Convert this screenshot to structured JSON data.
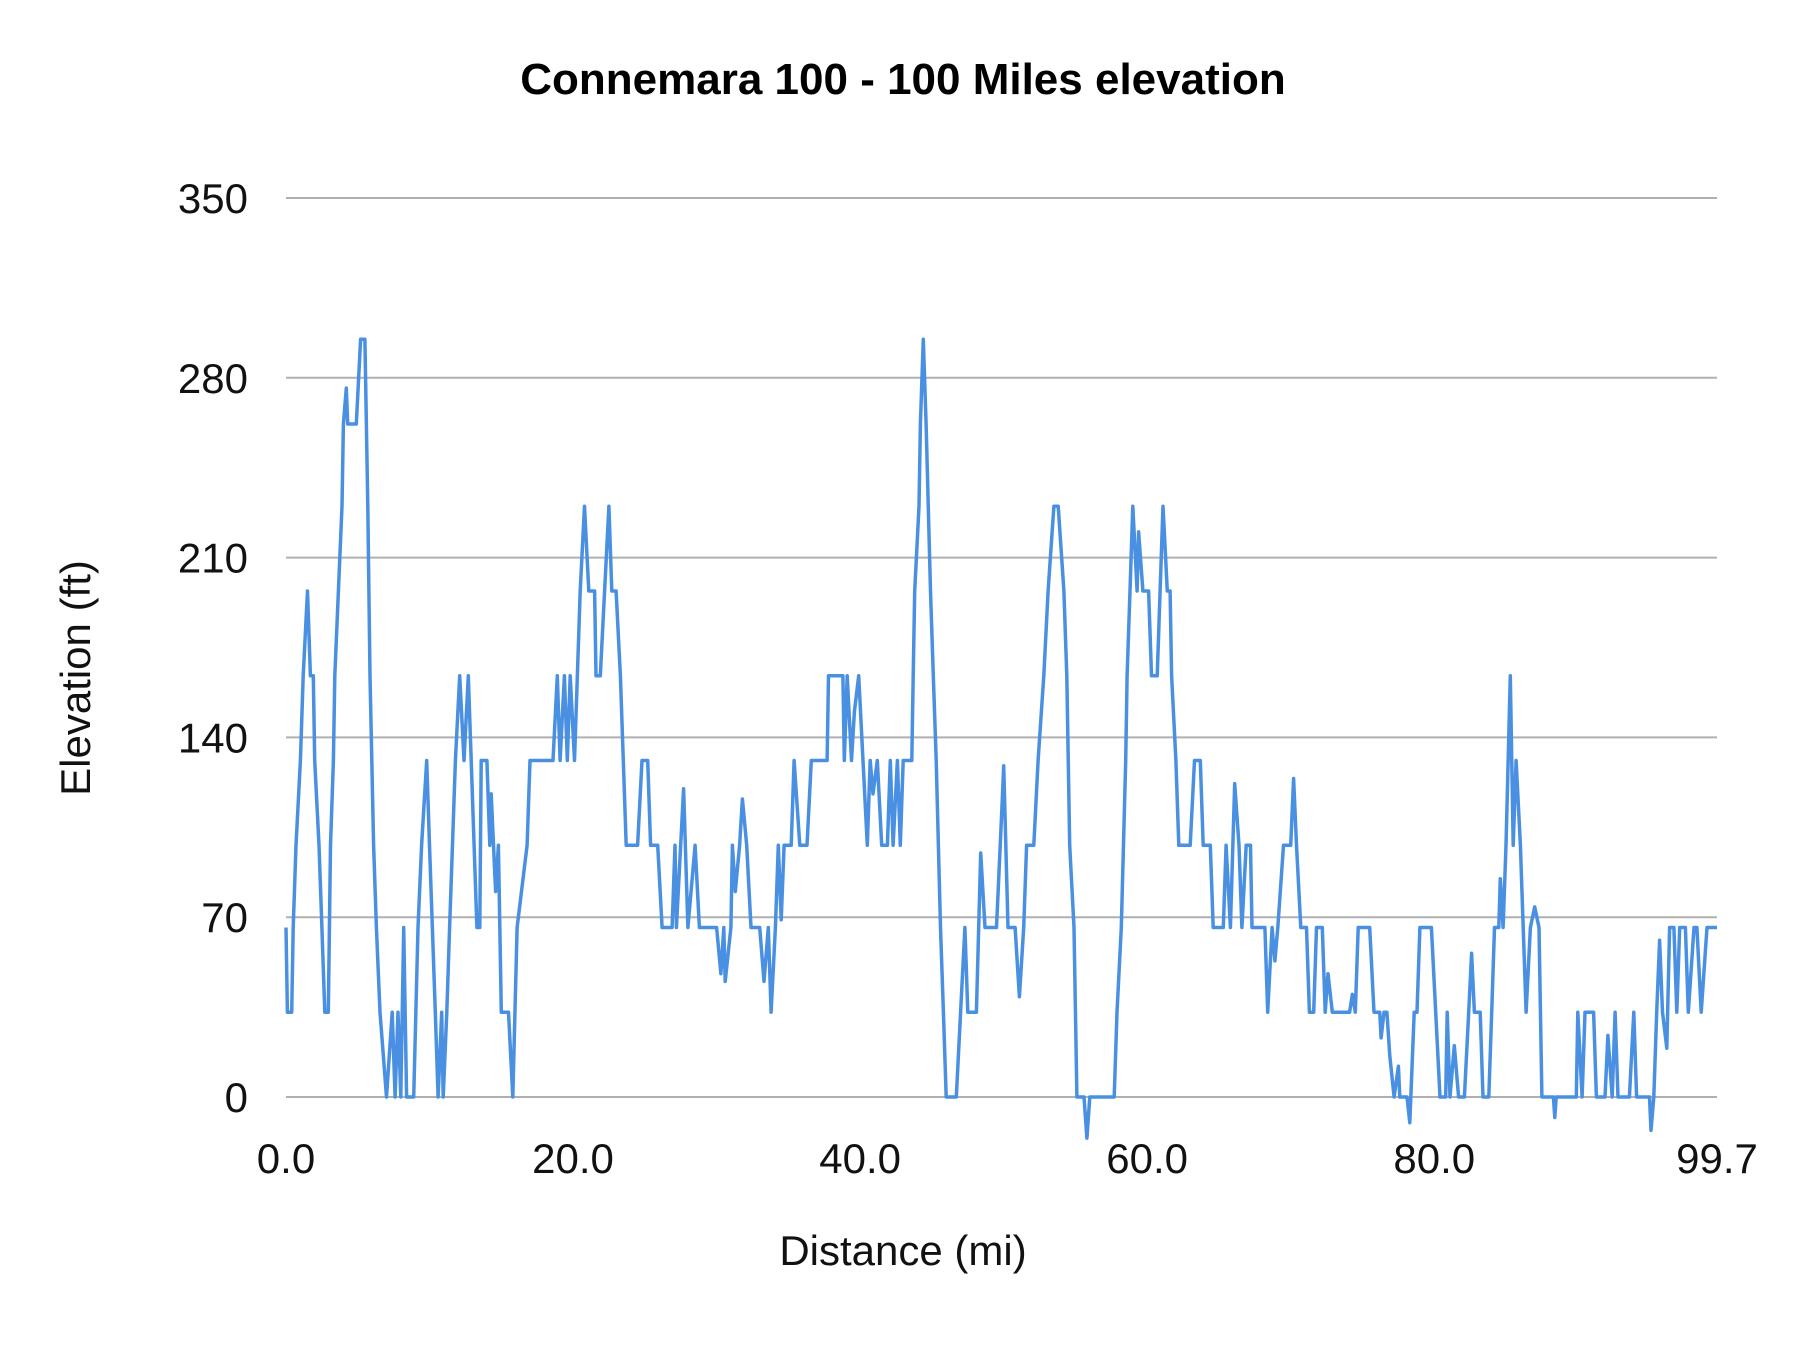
{
  "chart_data": {
    "type": "line",
    "title": "Connemara 100 - 100 Miles elevation",
    "xlabel": "Distance (mi)",
    "ylabel": "Elevation (ft)",
    "xlim": [
      0,
      99.7
    ],
    "ylim": [
      0,
      350
    ],
    "x_ticks": [
      "0.0",
      "20.0",
      "40.0",
      "60.0",
      "80.0",
      "99.7"
    ],
    "x_tick_values": [
      0,
      20,
      40,
      60,
      80,
      99.7
    ],
    "y_ticks": [
      "0",
      "70",
      "140",
      "210",
      "280",
      "350"
    ],
    "y_tick_values": [
      0,
      70,
      140,
      210,
      280,
      350
    ],
    "grid": "horizontal",
    "line_color": "#4a90e2",
    "series": [
      {
        "points": [
          [
            0,
            66
          ],
          [
            0.1,
            33
          ],
          [
            0.4,
            33
          ],
          [
            0.5,
            66
          ],
          [
            0.7,
            98
          ],
          [
            1.0,
            131
          ],
          [
            1.2,
            164
          ],
          [
            1.5,
            197
          ],
          [
            1.7,
            164
          ],
          [
            1.9,
            164
          ],
          [
            2.0,
            131
          ],
          [
            2.3,
            98
          ],
          [
            2.5,
            66
          ],
          [
            2.7,
            33
          ],
          [
            2.95,
            33
          ],
          [
            3.1,
            98
          ],
          [
            3.3,
            131
          ],
          [
            3.4,
            164
          ],
          [
            3.65,
            197
          ],
          [
            3.9,
            230
          ],
          [
            4.0,
            262
          ],
          [
            4.2,
            276
          ],
          [
            4.3,
            262
          ],
          [
            4.9,
            262
          ],
          [
            5.2,
            295
          ],
          [
            5.5,
            295
          ],
          [
            5.7,
            230
          ],
          [
            5.85,
            164
          ],
          [
            6.1,
            98
          ],
          [
            6.3,
            66
          ],
          [
            6.55,
            33
          ],
          [
            7.0,
            0
          ],
          [
            7.4,
            33
          ],
          [
            7.6,
            0
          ],
          [
            7.8,
            33
          ],
          [
            8.0,
            0
          ],
          [
            8.2,
            66
          ],
          [
            8.4,
            0
          ],
          [
            8.9,
            0
          ],
          [
            9.2,
            66
          ],
          [
            9.45,
            98
          ],
          [
            9.8,
            131
          ],
          [
            10.0,
            98
          ],
          [
            10.4,
            33
          ],
          [
            10.6,
            0
          ],
          [
            10.85,
            33
          ],
          [
            10.95,
            0
          ],
          [
            11.2,
            33
          ],
          [
            11.4,
            66
          ],
          [
            11.8,
            131
          ],
          [
            12.1,
            164
          ],
          [
            12.4,
            131
          ],
          [
            12.7,
            164
          ],
          [
            12.9,
            131
          ],
          [
            13.3,
            66
          ],
          [
            13.5,
            66
          ],
          [
            13.6,
            131
          ],
          [
            14.0,
            131
          ],
          [
            14.2,
            98
          ],
          [
            14.3,
            118
          ],
          [
            14.6,
            80
          ],
          [
            14.8,
            98
          ],
          [
            15.0,
            33
          ],
          [
            15.5,
            33
          ],
          [
            15.8,
            0
          ],
          [
            16.1,
            66
          ],
          [
            16.8,
            98
          ],
          [
            17.0,
            131
          ],
          [
            18.6,
            131
          ],
          [
            18.9,
            164
          ],
          [
            19.1,
            131
          ],
          [
            19.4,
            164
          ],
          [
            19.6,
            131
          ],
          [
            19.8,
            164
          ],
          [
            20.1,
            131
          ],
          [
            20.5,
            197
          ],
          [
            20.8,
            230
          ],
          [
            21.1,
            197
          ],
          [
            21.5,
            197
          ],
          [
            21.6,
            164
          ],
          [
            21.9,
            164
          ],
          [
            22.2,
            197
          ],
          [
            22.5,
            230
          ],
          [
            22.7,
            197
          ],
          [
            23.0,
            197
          ],
          [
            23.3,
            164
          ],
          [
            23.5,
            131
          ],
          [
            23.7,
            98
          ],
          [
            24.5,
            98
          ],
          [
            24.8,
            131
          ],
          [
            25.2,
            131
          ],
          [
            25.4,
            98
          ],
          [
            25.9,
            98
          ],
          [
            26.2,
            66
          ],
          [
            26.9,
            66
          ],
          [
            27.1,
            98
          ],
          [
            27.2,
            66
          ],
          [
            27.7,
            120
          ],
          [
            28.0,
            66
          ],
          [
            28.5,
            98
          ],
          [
            28.8,
            66
          ],
          [
            30.0,
            66
          ],
          [
            30.3,
            48
          ],
          [
            30.5,
            66
          ],
          [
            30.6,
            45
          ],
          [
            31.0,
            66
          ],
          [
            31.1,
            98
          ],
          [
            31.3,
            80
          ],
          [
            31.6,
            98
          ],
          [
            31.8,
            116
          ],
          [
            32.1,
            98
          ],
          [
            32.4,
            66
          ],
          [
            33.0,
            66
          ],
          [
            33.3,
            45
          ],
          [
            33.6,
            66
          ],
          [
            33.8,
            33
          ],
          [
            34.1,
            66
          ],
          [
            34.3,
            98
          ],
          [
            34.5,
            69
          ],
          [
            34.7,
            98
          ],
          [
            35.2,
            98
          ],
          [
            35.4,
            131
          ],
          [
            35.8,
            98
          ],
          [
            36.3,
            98
          ],
          [
            36.6,
            131
          ],
          [
            37.7,
            131
          ],
          [
            37.8,
            164
          ],
          [
            38.8,
            164
          ],
          [
            38.9,
            131
          ],
          [
            39.1,
            164
          ],
          [
            39.4,
            131
          ],
          [
            39.6,
            150
          ],
          [
            39.9,
            164
          ],
          [
            40.2,
            131
          ],
          [
            40.5,
            98
          ],
          [
            40.7,
            131
          ],
          [
            40.9,
            118
          ],
          [
            41.2,
            131
          ],
          [
            41.5,
            98
          ],
          [
            41.9,
            98
          ],
          [
            42.1,
            131
          ],
          [
            42.3,
            98
          ],
          [
            42.6,
            131
          ],
          [
            42.8,
            98
          ],
          [
            43.0,
            131
          ],
          [
            43.6,
            131
          ],
          [
            43.7,
            164
          ],
          [
            43.8,
            197
          ],
          [
            44.1,
            230
          ],
          [
            44.2,
            262
          ],
          [
            44.4,
            295
          ],
          [
            44.6,
            262
          ],
          [
            44.9,
            197
          ],
          [
            45.1,
            164
          ],
          [
            45.3,
            131
          ],
          [
            45.6,
            66
          ],
          [
            45.8,
            33
          ],
          [
            46.0,
            0
          ],
          [
            46.7,
            0
          ],
          [
            47.0,
            33
          ],
          [
            47.3,
            66
          ],
          [
            47.5,
            33
          ],
          [
            48.1,
            33
          ],
          [
            48.4,
            95
          ],
          [
            48.7,
            66
          ],
          [
            49.5,
            66
          ],
          [
            49.9,
            115
          ],
          [
            50.0,
            129
          ],
          [
            50.3,
            66
          ],
          [
            50.8,
            66
          ],
          [
            51.1,
            39
          ],
          [
            51.4,
            66
          ],
          [
            51.6,
            98
          ],
          [
            52.1,
            98
          ],
          [
            52.4,
            131
          ],
          [
            52.8,
            164
          ],
          [
            53.1,
            197
          ],
          [
            53.5,
            230
          ],
          [
            53.8,
            230
          ],
          [
            54.2,
            197
          ],
          [
            54.4,
            164
          ],
          [
            54.6,
            98
          ],
          [
            54.9,
            66
          ],
          [
            55.1,
            0
          ],
          [
            55.6,
            0
          ],
          [
            55.8,
            -16
          ],
          [
            56.0,
            0
          ],
          [
            57.7,
            0
          ],
          [
            57.9,
            33
          ],
          [
            58.2,
            66
          ],
          [
            58.5,
            131
          ],
          [
            58.6,
            164
          ],
          [
            58.8,
            197
          ],
          [
            59.0,
            230
          ],
          [
            59.3,
            197
          ],
          [
            59.4,
            220
          ],
          [
            59.7,
            197
          ],
          [
            60.1,
            197
          ],
          [
            60.3,
            164
          ],
          [
            60.7,
            164
          ],
          [
            60.9,
            197
          ],
          [
            61.1,
            230
          ],
          [
            61.4,
            197
          ],
          [
            61.6,
            197
          ],
          [
            61.7,
            164
          ],
          [
            62.0,
            131
          ],
          [
            62.2,
            98
          ],
          [
            63.0,
            98
          ],
          [
            63.3,
            131
          ],
          [
            63.7,
            131
          ],
          [
            63.9,
            98
          ],
          [
            64.4,
            98
          ],
          [
            64.6,
            66
          ],
          [
            65.3,
            66
          ],
          [
            65.5,
            98
          ],
          [
            65.8,
            66
          ],
          [
            66.1,
            122
          ],
          [
            66.4,
            98
          ],
          [
            66.6,
            66
          ],
          [
            66.9,
            98
          ],
          [
            67.2,
            98
          ],
          [
            67.3,
            66
          ],
          [
            68.2,
            66
          ],
          [
            68.4,
            33
          ],
          [
            68.7,
            66
          ],
          [
            68.9,
            53
          ],
          [
            69.1,
            66
          ],
          [
            69.5,
            98
          ],
          [
            70.0,
            98
          ],
          [
            70.2,
            124
          ],
          [
            70.4,
            98
          ],
          [
            70.7,
            66
          ],
          [
            71.1,
            66
          ],
          [
            71.3,
            33
          ],
          [
            71.6,
            33
          ],
          [
            71.8,
            66
          ],
          [
            72.2,
            66
          ],
          [
            72.4,
            33
          ],
          [
            72.6,
            48
          ],
          [
            72.9,
            33
          ],
          [
            74.1,
            33
          ],
          [
            74.3,
            40
          ],
          [
            74.5,
            33
          ],
          [
            74.7,
            66
          ],
          [
            75.5,
            66
          ],
          [
            75.8,
            33
          ],
          [
            76.2,
            33
          ],
          [
            76.3,
            23
          ],
          [
            76.5,
            33
          ],
          [
            76.7,
            33
          ],
          [
            76.9,
            16
          ],
          [
            77.2,
            0
          ],
          [
            77.5,
            12
          ],
          [
            77.6,
            0
          ],
          [
            78.1,
            0
          ],
          [
            78.3,
            -10
          ],
          [
            78.6,
            33
          ],
          [
            78.8,
            33
          ],
          [
            79.0,
            66
          ],
          [
            79.8,
            66
          ],
          [
            80.1,
            33
          ],
          [
            80.4,
            0
          ],
          [
            80.8,
            0
          ],
          [
            80.9,
            33
          ],
          [
            81.1,
            0
          ],
          [
            81.4,
            20
          ],
          [
            81.7,
            0
          ],
          [
            82.1,
            0
          ],
          [
            82.4,
            33
          ],
          [
            82.6,
            56
          ],
          [
            82.8,
            33
          ],
          [
            83.2,
            33
          ],
          [
            83.4,
            0
          ],
          [
            83.8,
            0
          ],
          [
            84.0,
            33
          ],
          [
            84.2,
            66
          ],
          [
            84.5,
            66
          ],
          [
            84.6,
            85
          ],
          [
            84.8,
            66
          ],
          [
            85.0,
            98
          ],
          [
            85.3,
            164
          ],
          [
            85.5,
            98
          ],
          [
            85.7,
            131
          ],
          [
            86.0,
            98
          ],
          [
            86.2,
            66
          ],
          [
            86.4,
            33
          ],
          [
            86.7,
            66
          ],
          [
            87.0,
            74
          ],
          [
            87.3,
            66
          ],
          [
            87.5,
            0
          ],
          [
            88.3,
            0
          ],
          [
            88.4,
            -8
          ],
          [
            88.5,
            0
          ],
          [
            89.9,
            0
          ],
          [
            90.0,
            33
          ],
          [
            90.3,
            0
          ],
          [
            90.5,
            33
          ],
          [
            91.1,
            33
          ],
          [
            91.3,
            0
          ],
          [
            91.9,
            0
          ],
          [
            92.1,
            24
          ],
          [
            92.4,
            0
          ],
          [
            92.6,
            33
          ],
          [
            92.8,
            0
          ],
          [
            93.6,
            0
          ],
          [
            93.9,
            33
          ],
          [
            94.1,
            0
          ],
          [
            95.0,
            0
          ],
          [
            95.1,
            -13
          ],
          [
            95.3,
            0
          ],
          [
            95.5,
            33
          ],
          [
            95.7,
            61
          ],
          [
            95.9,
            33
          ],
          [
            96.2,
            19
          ],
          [
            96.4,
            66
          ],
          [
            96.7,
            66
          ],
          [
            96.9,
            33
          ],
          [
            97.1,
            66
          ],
          [
            97.5,
            66
          ],
          [
            97.7,
            33
          ],
          [
            98.1,
            66
          ],
          [
            98.3,
            66
          ],
          [
            98.6,
            33
          ],
          [
            99.0,
            66
          ],
          [
            99.7,
            66
          ]
        ]
      }
    ]
  }
}
